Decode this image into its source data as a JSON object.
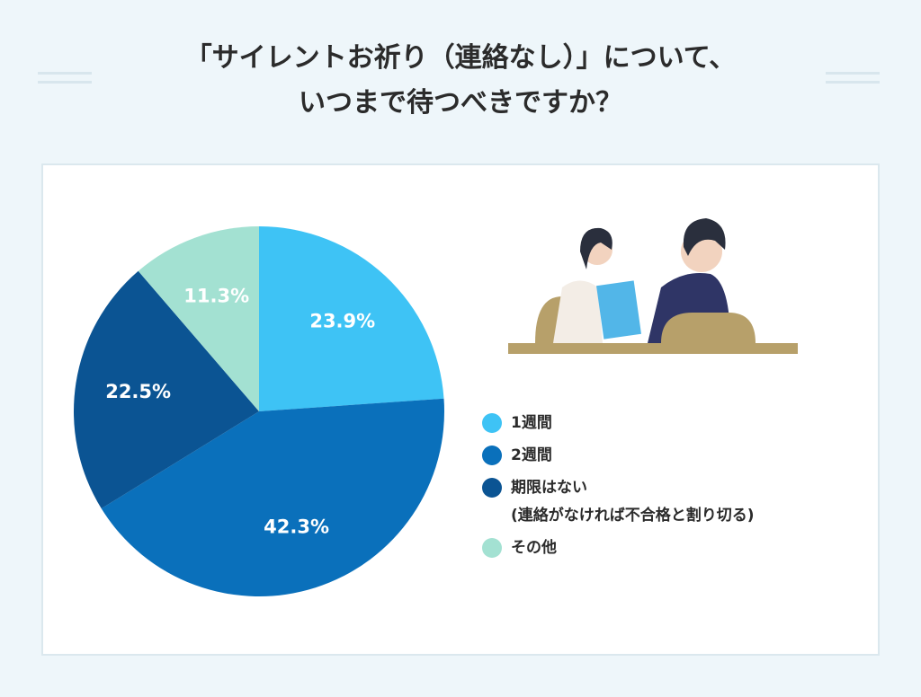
{
  "chart_data": {
    "type": "pie",
    "title": "「サイレントお祈り（連絡なし）」について、\nいつまで待つべきですか？",
    "categories": [
      "1週間",
      "2週間",
      "期限はない\n(連絡がなければ不合格と割り切る)",
      "その他"
    ],
    "values": [
      23.9,
      42.3,
      22.5,
      11.3
    ],
    "value_labels": [
      "23.9%",
      "42.3%",
      "22.5%",
      "11.3%"
    ],
    "colors": [
      "#3ec3f5",
      "#0a70bb",
      "#0b5493",
      "#a3e1d2"
    ]
  }
}
